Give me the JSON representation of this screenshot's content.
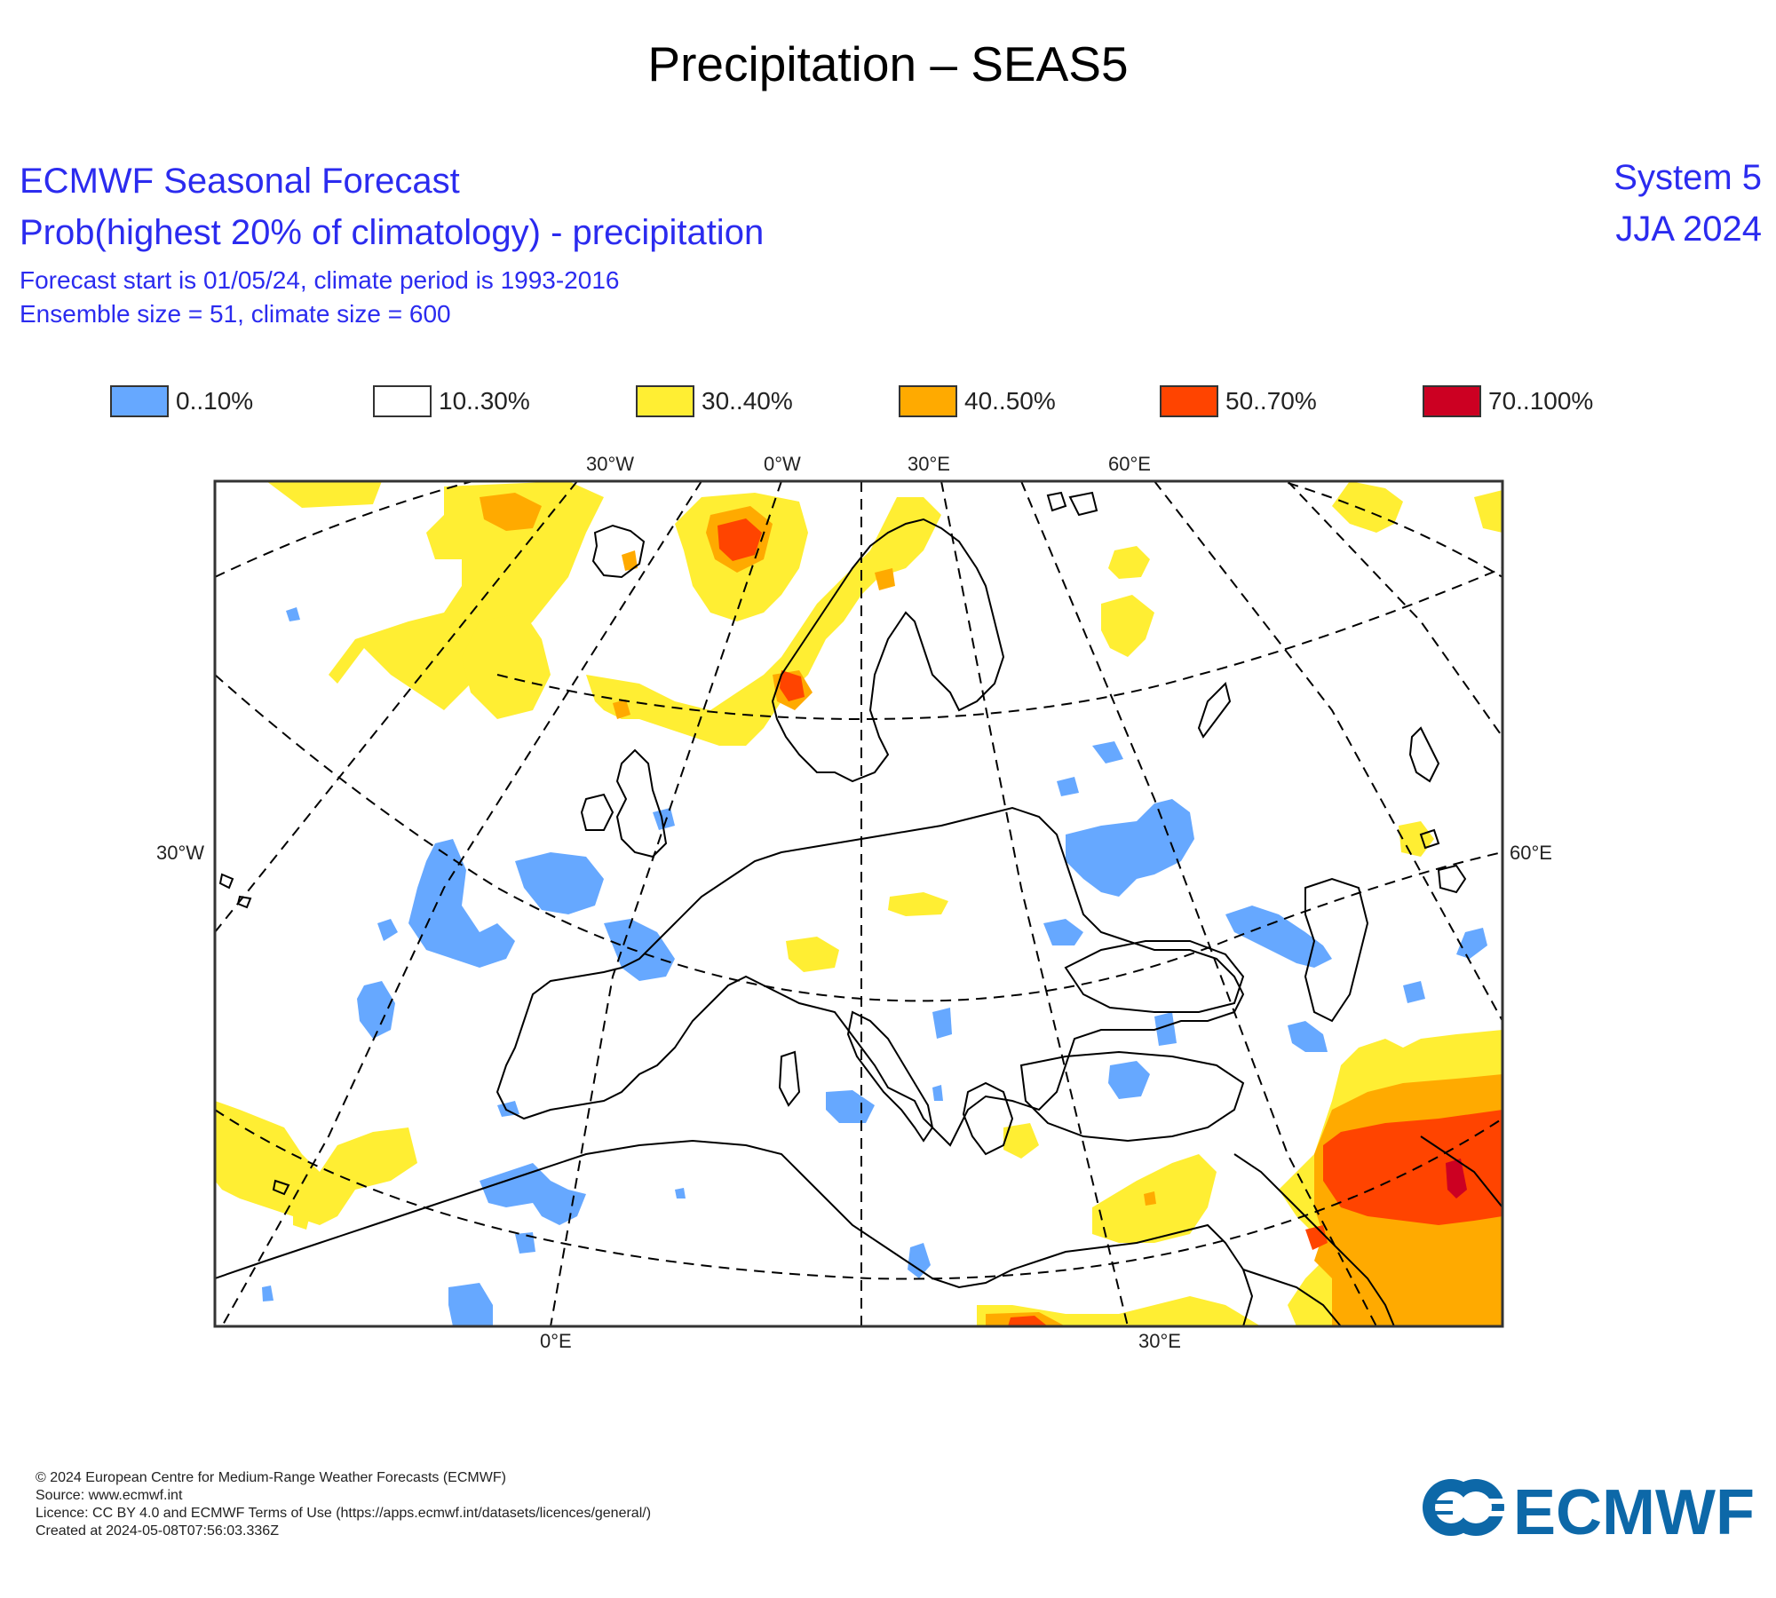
{
  "title": "Precipitation – SEAS5",
  "header": {
    "line1": "ECMWF Seasonal Forecast",
    "line2": "Prob(highest 20% of climatology) - precipitation",
    "line3": "Forecast start is 01/05/24, climate period is 1993-2016",
    "line4": "Ensemble size = 51, climate size = 600",
    "system": "System 5",
    "period": "JJA 2024"
  },
  "legend": [
    {
      "label": "0..10%",
      "color": "#66a8ff"
    },
    {
      "label": "10..30%",
      "color": "#ffffff"
    },
    {
      "label": "30..40%",
      "color": "#ffee33"
    },
    {
      "label": "40..50%",
      "color": "#ffaa00"
    },
    {
      "label": "50..70%",
      "color": "#ff4400"
    },
    {
      "label": "70..100%",
      "color": "#cc0022"
    }
  ],
  "map_labels": {
    "top": [
      "30°W",
      "0°W",
      "30°E",
      "60°E"
    ],
    "left": "30°W",
    "right": "60°E",
    "bottom": [
      "0°E",
      "30°E"
    ]
  },
  "footer": {
    "line1": "© 2024 European Centre for Medium-Range Weather Forecasts (ECMWF)",
    "line2": "Source: www.ecmwf.int",
    "line3": "Licence: CC BY 4.0 and ECMWF Terms of Use (https://apps.ecmwf.int/datasets/licences/general/)",
    "line4": "Created at 2024-05-08T07:56:03.336Z",
    "logo_text": "ECMWF",
    "logo_color": "#0d68a8"
  }
}
